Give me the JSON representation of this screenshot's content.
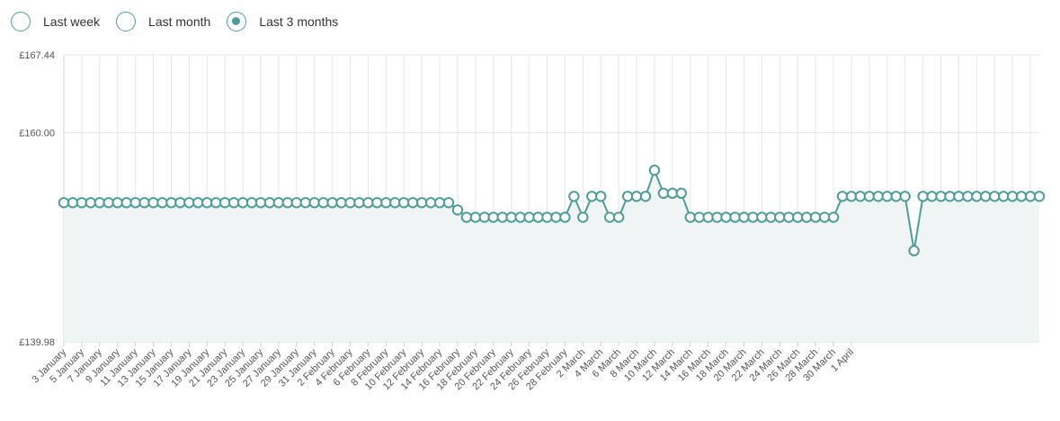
{
  "range_selector": {
    "options": [
      {
        "label": "Last week",
        "selected": false
      },
      {
        "label": "Last month",
        "selected": false
      },
      {
        "label": "Last 3 months",
        "selected": true
      }
    ]
  },
  "colors": {
    "accent": "#4e9c97",
    "area_fill": "#eef5f4",
    "grid": "#e6e6e6"
  },
  "chart_data": {
    "type": "area",
    "title": "",
    "xlabel": "",
    "ylabel": "",
    "ylim": [
      139.98,
      167.44
    ],
    "y_ticks": [
      "£139.98",
      "£160.00",
      "£167.44"
    ],
    "y_tick_values": [
      139.98,
      160.0,
      167.44
    ],
    "grid": true,
    "x_tick_labels": [
      "3 January",
      "5 January",
      "7 January",
      "9 January",
      "11 January",
      "13 January",
      "15 January",
      "17 January",
      "19 January",
      "21 January",
      "23 January",
      "25 January",
      "27 January",
      "29 January",
      "31 January",
      "2 February",
      "4 February",
      "6 February",
      "8 February",
      "10 February",
      "12 February",
      "14 February",
      "16 February",
      "18 February",
      "20 February",
      "22 February",
      "24 February",
      "26 February",
      "28 February",
      "2 March",
      "4 March",
      "6 March",
      "8 March",
      "10 March",
      "12 March",
      "14 March",
      "16 March",
      "18 March",
      "20 March",
      "22 March",
      "24 March",
      "26 March",
      "28 March",
      "30 March",
      "1 April"
    ],
    "series": [
      {
        "values": [
          153.3,
          153.3,
          153.3,
          153.3,
          153.3,
          153.3,
          153.3,
          153.3,
          153.3,
          153.3,
          153.3,
          153.3,
          153.3,
          153.3,
          153.3,
          153.3,
          153.3,
          153.3,
          153.3,
          153.3,
          153.3,
          153.3,
          153.3,
          153.3,
          153.3,
          153.3,
          153.3,
          153.3,
          153.3,
          153.3,
          153.3,
          153.3,
          153.3,
          153.3,
          153.3,
          153.3,
          153.3,
          153.3,
          153.3,
          153.3,
          153.3,
          153.3,
          153.3,
          153.3,
          152.6,
          151.9,
          151.9,
          151.9,
          151.9,
          151.9,
          151.9,
          151.9,
          151.9,
          151.9,
          151.9,
          151.9,
          151.9,
          153.9,
          151.9,
          153.9,
          153.9,
          151.9,
          151.9,
          153.9,
          153.9,
          153.9,
          156.4,
          154.2,
          154.2,
          154.2,
          151.9,
          151.9,
          151.9,
          151.9,
          151.9,
          151.9,
          151.9,
          151.9,
          151.9,
          151.9,
          151.9,
          151.9,
          151.9,
          151.9,
          151.9,
          151.9,
          151.9,
          153.9,
          153.9,
          153.9,
          153.9,
          153.9,
          153.9,
          153.9,
          153.9,
          148.7,
          153.9,
          153.9,
          153.9,
          153.9,
          153.9,
          153.9,
          153.9,
          153.9,
          153.9,
          153.9,
          153.9,
          153.9,
          153.9,
          153.9
        ]
      }
    ]
  }
}
